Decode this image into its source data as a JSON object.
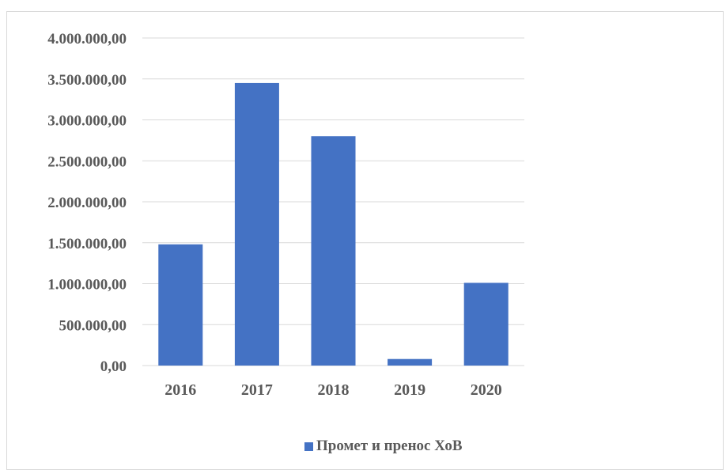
{
  "chart_data": {
    "type": "bar",
    "title": "",
    "xlabel": "",
    "ylabel": "",
    "categories": [
      "2016",
      "2017",
      "2018",
      "2019",
      "2020"
    ],
    "series": [
      {
        "name": "Промет и пренос ХоВ",
        "color": "#4472c4",
        "values": [
          1480000,
          3450000,
          2800000,
          80000,
          1010000
        ]
      }
    ],
    "ylim": [
      0,
      4000000
    ],
    "yticks": [
      0,
      500000,
      1000000,
      1500000,
      2000000,
      2500000,
      3000000,
      3500000,
      4000000
    ],
    "ytick_labels": [
      "0,00",
      "500.000,00",
      "1.000.000,00",
      "1.500.000,00",
      "2.000.000,00",
      "2.500.000,00",
      "3.000.000,00",
      "3.500.000,00",
      "4.000.000,00"
    ],
    "grid": true,
    "legend_position": "bottom"
  }
}
